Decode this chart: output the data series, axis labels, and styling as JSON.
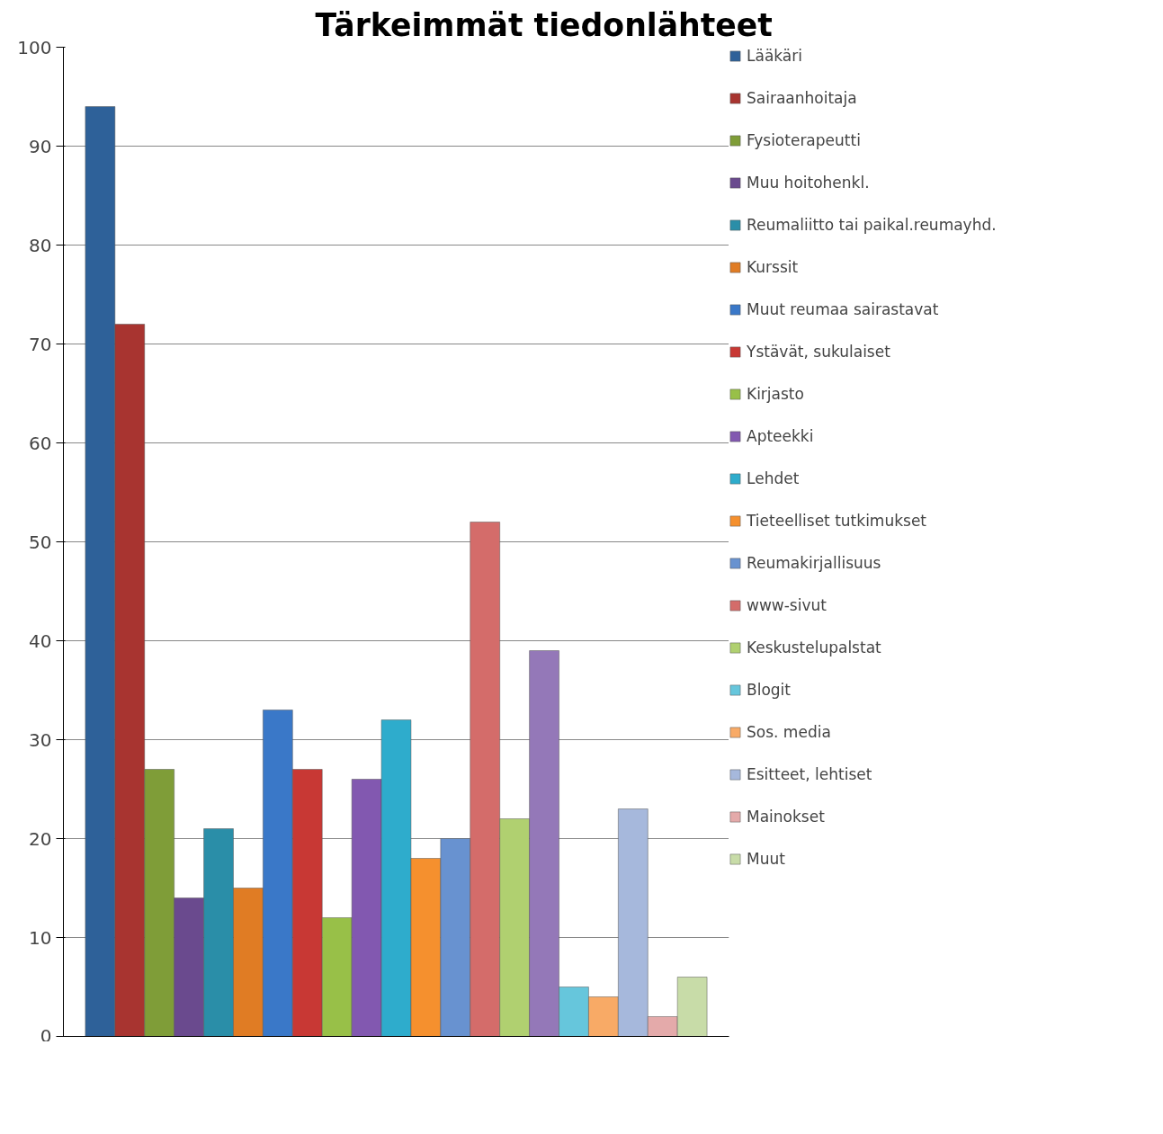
{
  "chart_data": {
    "type": "bar",
    "title": "Tärkeimmät tiedonlähteet",
    "categories": [
      null
    ],
    "series": [
      {
        "name": "Lääkäri",
        "color": "#2e6199",
        "values": [
          94
        ]
      },
      {
        "name": "Sairaanhoitaja",
        "color": "#a83430",
        "values": [
          72
        ]
      },
      {
        "name": "Fysioterapeutti",
        "color": "#7f9d38",
        "values": [
          27
        ]
      },
      {
        "name": "Muu hoitohenkl.",
        "color": "#6a4a8e",
        "values": [
          14
        ]
      },
      {
        "name": "Reumaliitto tai paikal.reumayhd.",
        "color": "#2a8ea8",
        "values": [
          21
        ]
      },
      {
        "name": "Kurssit",
        "color": "#e07c24",
        "values": [
          15
        ]
      },
      {
        "name": "Muut reumaa sairastavat",
        "color": "#3a78c8",
        "values": [
          33
        ]
      },
      {
        "name": "Ystävät, sukulaiset",
        "color": "#c83834",
        "values": [
          27
        ]
      },
      {
        "name": "Kirjasto",
        "color": "#98c048",
        "values": [
          12
        ]
      },
      {
        "name": "Apteekki",
        "color": "#8258b0",
        "values": [
          26
        ]
      },
      {
        "name": "Lehdet",
        "color": "#2eaccc",
        "values": [
          32
        ]
      },
      {
        "name": "Tieteelliset tutkimukset",
        "color": "#f5902e",
        "values": [
          18
        ]
      },
      {
        "name": "Reumakirjallisuus",
        "color": "#6892d0",
        "values": [
          20
        ]
      },
      {
        "name": "www-sivut",
        "color": "#d46c6a",
        "values": [
          52
        ]
      },
      {
        "name": "Keskustelupalstat",
        "color": "#b0d070",
        "values": [
          22
        ]
      },
      {
        "color": "#9478b8",
        "values": [
          39
        ]
      },
      {
        "name": "Blogit",
        "color": "#66c6dc",
        "values": [
          5
        ]
      },
      {
        "name": "Sos. media",
        "color": "#f8aa66",
        "values": [
          4
        ]
      },
      {
        "name": "Esitteet, lehtiset",
        "color": "#a6b8dc",
        "values": [
          23
        ]
      },
      {
        "name": "Mainokset",
        "color": "#e4aaaa",
        "values": [
          2
        ]
      },
      {
        "name": "Muut",
        "color": "#c8dca8",
        "values": [
          6
        ]
      }
    ],
    "ylim": [
      0,
      100
    ],
    "yticks": [
      0,
      10,
      20,
      30,
      40,
      50,
      60,
      70,
      80,
      90,
      100
    ],
    "grid": "y",
    "legend": "right"
  }
}
